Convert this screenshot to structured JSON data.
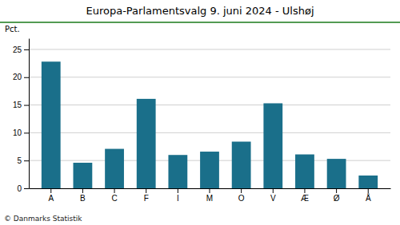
{
  "chart_data": {
    "type": "bar",
    "title": "Europa-Parlamentsvalg 9. juni 2024 - Ulshøj",
    "categories": [
      "A",
      "B",
      "C",
      "F",
      "I",
      "M",
      "O",
      "V",
      "Æ",
      "Ø",
      "Å"
    ],
    "values": [
      22.8,
      4.6,
      7.1,
      16.1,
      6.0,
      6.6,
      8.4,
      15.3,
      6.1,
      5.3,
      2.3
    ],
    "color": "#1a6f8a",
    "ylim": [
      0,
      27
    ],
    "yticks": [
      0,
      5,
      10,
      15,
      20,
      25
    ],
    "grid": true,
    "ylabel": "Pct.",
    "annotations": [
      "© Danmarks Statistik"
    ]
  }
}
